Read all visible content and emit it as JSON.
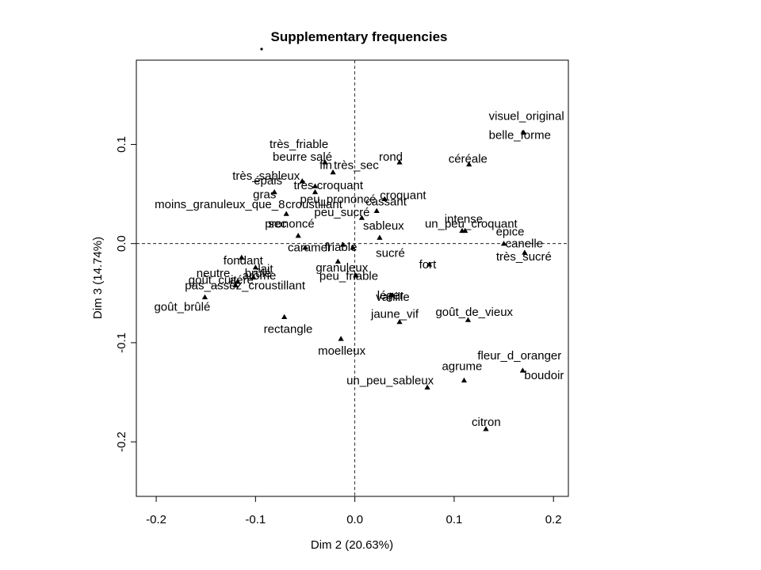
{
  "chart_data": {
    "type": "scatter",
    "title": "Supplementary frequencies",
    "xlabel": "Dim 2 (20.63%)",
    "ylabel": "Dim 3 (14.74%)",
    "xlim": [
      -0.22,
      0.215
    ],
    "ylim": [
      -0.255,
      0.185
    ],
    "xticks": [
      -0.2,
      -0.1,
      0.0,
      0.1,
      0.2
    ],
    "xtick_labels": [
      "-0.2",
      "-0.1",
      "0.0",
      "0.1",
      "0.2"
    ],
    "yticks": [
      -0.2,
      -0.1,
      0.0,
      0.1
    ],
    "ytick_labels": [
      "-0.2",
      "-0.1",
      "0.0",
      "0.1"
    ],
    "reference_lines": [
      0,
      0
    ],
    "grid": false,
    "marker": "triangle",
    "points": [
      {
        "label": "visuel_original",
        "x": 0.17,
        "y": 0.112
      },
      {
        "label": "belle_forme",
        "x": 0.17,
        "y": 0.112
      },
      {
        "label": "très_friable",
        "x": -0.03,
        "y": 0.082
      },
      {
        "label": "beurre salé",
        "x": -0.03,
        "y": 0.082
      },
      {
        "label": "rond",
        "x": 0.045,
        "y": 0.082
      },
      {
        "label": "céréale",
        "x": 0.115,
        "y": 0.08
      },
      {
        "label": "très_sableux",
        "x": -0.053,
        "y": 0.063
      },
      {
        "label": "fin",
        "x": -0.022,
        "y": 0.072
      },
      {
        "label": "très_sec",
        "x": -0.022,
        "y": 0.072
      },
      {
        "label": "épais",
        "x": -0.053,
        "y": 0.063
      },
      {
        "label": "très croquant",
        "x": -0.04,
        "y": 0.058
      },
      {
        "label": "gras",
        "x": -0.081,
        "y": 0.052
      },
      {
        "label": "peu_prononcé",
        "x": -0.04,
        "y": 0.052
      },
      {
        "label": "croquant",
        "x": 0.03,
        "y": 0.045
      },
      {
        "label": "moins_granuleux_que_8",
        "x": -0.069,
        "y": 0.03
      },
      {
        "label": "croustillant",
        "x": -0.069,
        "y": 0.03
      },
      {
        "label": "cassant",
        "x": 0.022,
        "y": 0.033
      },
      {
        "label": "peu_sucré",
        "x": 0.007,
        "y": 0.026
      },
      {
        "label": "un_peu_croquant",
        "x": 0.108,
        "y": 0.013
      },
      {
        "label": "prononcé",
        "x": -0.057,
        "y": 0.008
      },
      {
        "label": "sec",
        "x": -0.057,
        "y": 0.008
      },
      {
        "label": "sableux",
        "x": 0.025,
        "y": 0.006
      },
      {
        "label": "intense",
        "x": 0.111,
        "y": 0.013
      },
      {
        "label": "épice",
        "x": 0.15,
        "y": 0.0
      },
      {
        "label": "caramel",
        "x": -0.05,
        "y": -0.004
      },
      {
        "label": "friable",
        "x": -0.012,
        "y": -0.001
      },
      {
        "label": "canelle",
        "x": 0.15,
        "y": 0.0
      },
      {
        "label": "fondant",
        "x": -0.114,
        "y": -0.014
      },
      {
        "label": "sucré",
        "x": -0.002,
        "y": -0.004
      },
      {
        "label": "très_sucré",
        "x": 0.171,
        "y": -0.009
      },
      {
        "label": "neutre",
        "x": -0.114,
        "y": -0.014
      },
      {
        "label": "brûlé",
        "x": -0.114,
        "y": -0.014
      },
      {
        "label": "granuleux",
        "x": -0.017,
        "y": -0.018
      },
      {
        "label": "fort",
        "x": 0.075,
        "y": -0.021
      },
      {
        "label": "lait",
        "x": -0.1,
        "y": -0.024
      },
      {
        "label": "aéré",
        "x": -0.118,
        "y": -0.038
      },
      {
        "label": "peu_friable",
        "x": 0.001,
        "y": -0.032
      },
      {
        "label": "goût_cuit",
        "x": -0.118,
        "y": -0.038
      },
      {
        "label": "arôme",
        "x": -0.102,
        "y": -0.034
      },
      {
        "label": "léger",
        "x": 0.036,
        "y": -0.052
      },
      {
        "label": "pas_assez_croustillant",
        "x": -0.12,
        "y": -0.042
      },
      {
        "label": "vanille",
        "x": 0.038,
        "y": -0.052
      },
      {
        "label": "goût_brûlé",
        "x": -0.151,
        "y": -0.054
      },
      {
        "label": "jaune_vif",
        "x": 0.045,
        "y": -0.079
      },
      {
        "label": "goût_de_vieux",
        "x": 0.114,
        "y": -0.077
      },
      {
        "label": "rectangle",
        "x": -0.071,
        "y": -0.074
      },
      {
        "label": "moelleux",
        "x": -0.014,
        "y": -0.096
      },
      {
        "label": "fleur_d_oranger",
        "x": 0.169,
        "y": -0.128
      },
      {
        "label": "agrume",
        "x": 0.11,
        "y": -0.138
      },
      {
        "label": "boudoir",
        "x": 0.169,
        "y": -0.128
      },
      {
        "label": "un_peu_sableux",
        "x": 0.073,
        "y": -0.145
      },
      {
        "label": "citron",
        "x": 0.132,
        "y": -0.187
      }
    ]
  }
}
